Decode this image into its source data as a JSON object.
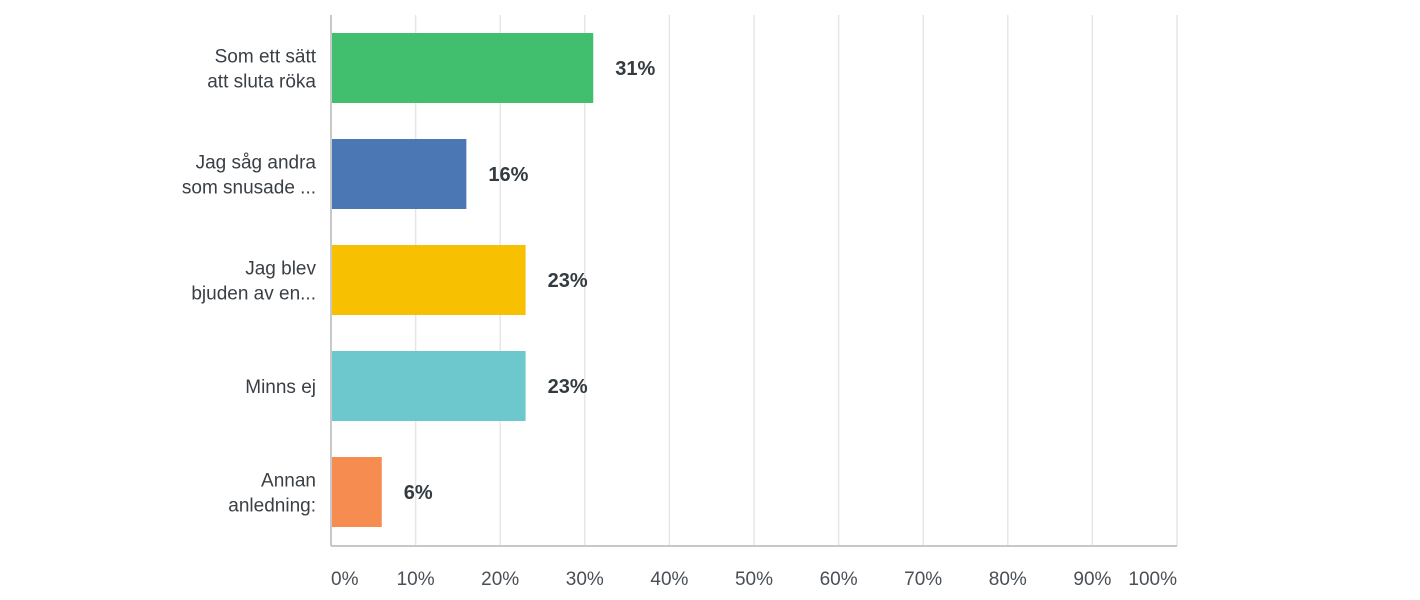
{
  "chart_data": {
    "type": "bar",
    "orientation": "horizontal",
    "categories": [
      [
        "Som ett sätt",
        "att sluta röka"
      ],
      [
        "Jag såg andra",
        "som snusade ..."
      ],
      [
        "Jag blev",
        "bjuden av en..."
      ],
      [
        "Minns ej"
      ],
      [
        "Annan",
        "anledning:"
      ]
    ],
    "values": [
      31,
      16,
      23,
      23,
      6
    ],
    "value_labels": [
      "31%",
      "16%",
      "23%",
      "23%",
      "6%"
    ],
    "colors": [
      "#41bf6e",
      "#4b78b4",
      "#f7c000",
      "#6cc8cc",
      "#f78c50"
    ],
    "xlim": [
      0,
      100
    ],
    "x_ticks": [
      "0%",
      "10%",
      "20%",
      "30%",
      "40%",
      "50%",
      "60%",
      "70%",
      "80%",
      "90%",
      "100%"
    ],
    "grid": true,
    "title": "",
    "xlabel": "",
    "ylabel": ""
  }
}
